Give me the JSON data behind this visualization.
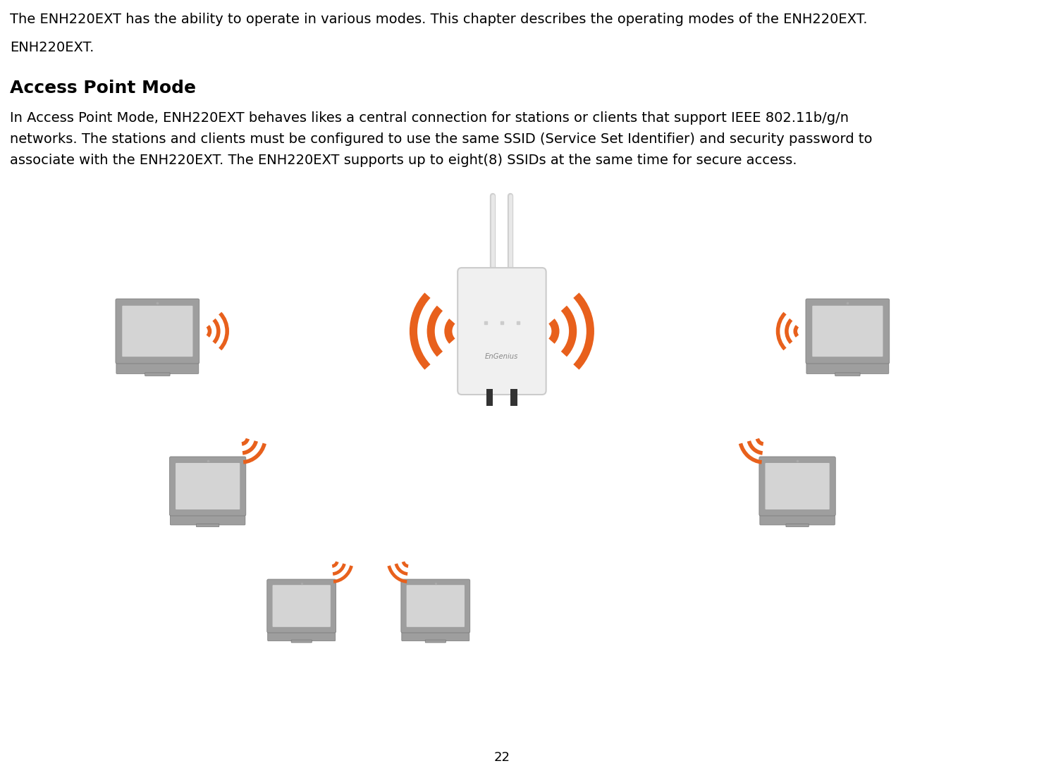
{
  "background_color": "#ffffff",
  "page_number": "22",
  "intro_text": "The ENH220EXT has the ability to operate in various modes. This chapter describes the operating modes of the ENH220EXT.",
  "section_title": "Access Point Mode",
  "body_text_1": "In Access Point Mode, ENH220EXT behaves likes a central connection for stations or clients that support IEEE 802.11b/g/n",
  "body_text_2": "networks. The stations and clients must be configured to use the same SSID (Service Set Identifier) and security password to",
  "body_text_3": "associate with the ENH220EXT. The ENH220EXT supports up to eight(8) SSIDs at the same time for secure access.",
  "wifi_color": "#e8601c",
  "laptop_body_color": "#9e9e9e",
  "laptop_screen_color": "#d4d4d4",
  "ap_body_color": "#f0f0f0",
  "ap_text": "EnGenius",
  "font_family": "DejaVu Sans"
}
